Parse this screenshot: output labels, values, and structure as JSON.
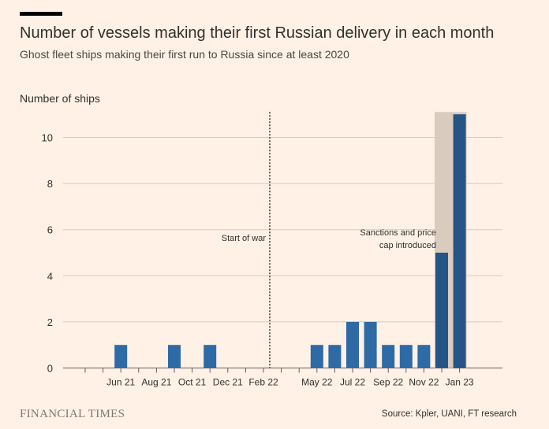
{
  "header": {
    "title": "Number of vessels making their first Russian delivery in each month",
    "subtitle": "Ghost fleet ships making their first run to Russia since at least 2020"
  },
  "footer": {
    "brand": "FINANCIAL TIMES",
    "source": "Source: Kpler, UANI, FT research"
  },
  "colors": {
    "background": "#fff1e5",
    "bar": "#2e6aa6",
    "bar_highlight": "#255486",
    "shade": "#d9cbbd",
    "gridline": "#d6c9bd",
    "text": "#33302e"
  },
  "chart_data": {
    "type": "bar",
    "title": "Number of vessels making their first Russian delivery in each month",
    "ylabel": "Number of ships",
    "xlabel": "",
    "ylim": [
      0,
      11
    ],
    "yticks": [
      0,
      2,
      4,
      6,
      8,
      10
    ],
    "grid": true,
    "categories": [
      "Apr 21",
      "May 21",
      "Jun 21",
      "Jul 21",
      "Aug 21",
      "Sep 21",
      "Oct 21",
      "Nov 21",
      "Dec 21",
      "Jan 22",
      "Feb 22",
      "Mar 22",
      "Apr 22",
      "May 22",
      "Jun 22",
      "Jul 22",
      "Aug 22",
      "Sep 22",
      "Oct 22",
      "Nov 22",
      "Dec 22",
      "Jan 23"
    ],
    "values": [
      0,
      0,
      1,
      0,
      0,
      1,
      0,
      1,
      0,
      0,
      0,
      0,
      0,
      1,
      1,
      2,
      2,
      1,
      1,
      1,
      5,
      11
    ],
    "xtick_labels": [
      "Jun 21",
      "Aug 21",
      "Oct 21",
      "Dec 21",
      "Feb 22",
      "May 22",
      "Jul 22",
      "Sep 22",
      "Nov 22",
      "Jan 23"
    ],
    "annotations": [
      {
        "text": "Start of war",
        "category": "Feb 22",
        "style": "dotted-line"
      },
      {
        "lines": [
          "Sanctions and price",
          "cap introduced"
        ],
        "range": [
          "Dec 22",
          "Jan 23"
        ],
        "style": "shaded-band"
      }
    ]
  }
}
